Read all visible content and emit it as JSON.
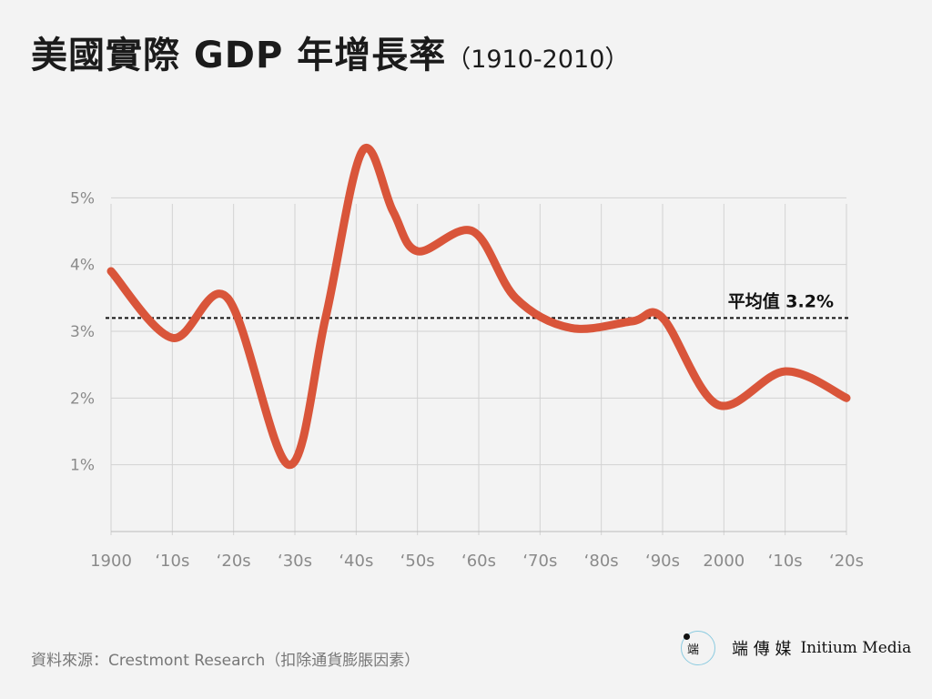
{
  "header": {
    "title": "美國實際 GDP 年增長率",
    "subtitle": "（1910-2010）"
  },
  "chart_data": {
    "type": "line",
    "x_tick_labels": [
      "1900",
      "‘10s",
      "‘20s",
      "‘30s",
      "‘40s",
      "‘50s",
      "‘60s",
      "‘70s",
      "‘80s",
      "‘90s",
      "2000",
      "‘10s",
      "‘20s"
    ],
    "y_tick_labels": [
      "1%",
      "2%",
      "3%",
      "4%",
      "5%"
    ],
    "y_ticks": [
      1,
      2,
      3,
      4,
      5
    ],
    "xlim": [
      1900,
      2020
    ],
    "ylim": [
      0,
      5.4
    ],
    "series": [
      {
        "color": "#d9553a",
        "x": [
          1900,
          1910,
          1919,
          1929,
          1935,
          1941,
          1946,
          1950,
          1959,
          1966,
          1975,
          1985,
          1990,
          1999,
          2010,
          2020
        ],
        "y": [
          3.9,
          2.9,
          3.5,
          1.0,
          3.2,
          5.7,
          4.8,
          4.2,
          4.5,
          3.5,
          3.05,
          3.15,
          3.2,
          1.9,
          2.4,
          2.0
        ]
      }
    ],
    "reference_line": {
      "value": 3.2,
      "label": "平均值 3.2%",
      "style": "dashed",
      "color": "#111111"
    },
    "grid": true
  },
  "footer": {
    "source": "資料來源：Crestmont Research（扣除通貨膨脹因素）",
    "brand_logo_glyph": "端",
    "brand_name": "端 傳 媒",
    "brand_name_en": "Initium Media"
  }
}
